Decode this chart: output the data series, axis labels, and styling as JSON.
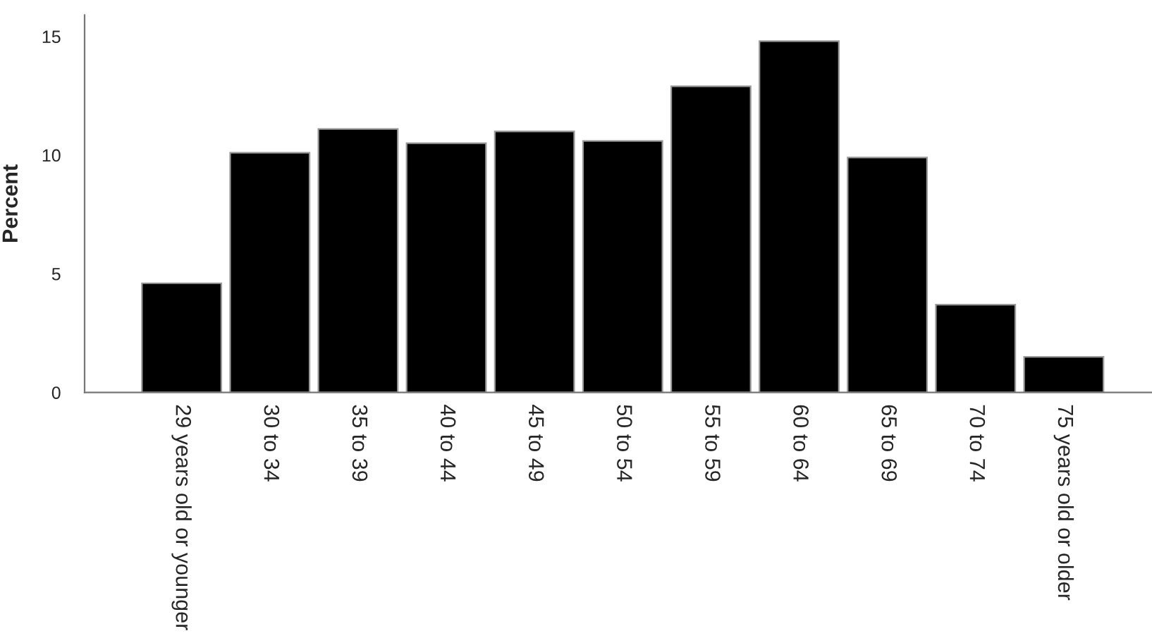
{
  "chart_data": {
    "type": "bar",
    "ylabel": "Percent",
    "categories": [
      "29 years old or younger",
      "30 to 34",
      "35 to 39",
      "40 to 44",
      "45 to 49",
      "50 to 54",
      "55 to 59",
      "60 to 64",
      "65 to 69",
      "70 to 74",
      "75 years old or older"
    ],
    "values": [
      4.6,
      10.1,
      11.1,
      10.5,
      11.0,
      10.6,
      12.9,
      14.8,
      9.9,
      3.7,
      1.5
    ],
    "color": "#000000",
    "ylim": [
      0,
      15.9
    ],
    "yticks": [
      0,
      5,
      10,
      15
    ],
    "grid": false,
    "legend": false
  }
}
